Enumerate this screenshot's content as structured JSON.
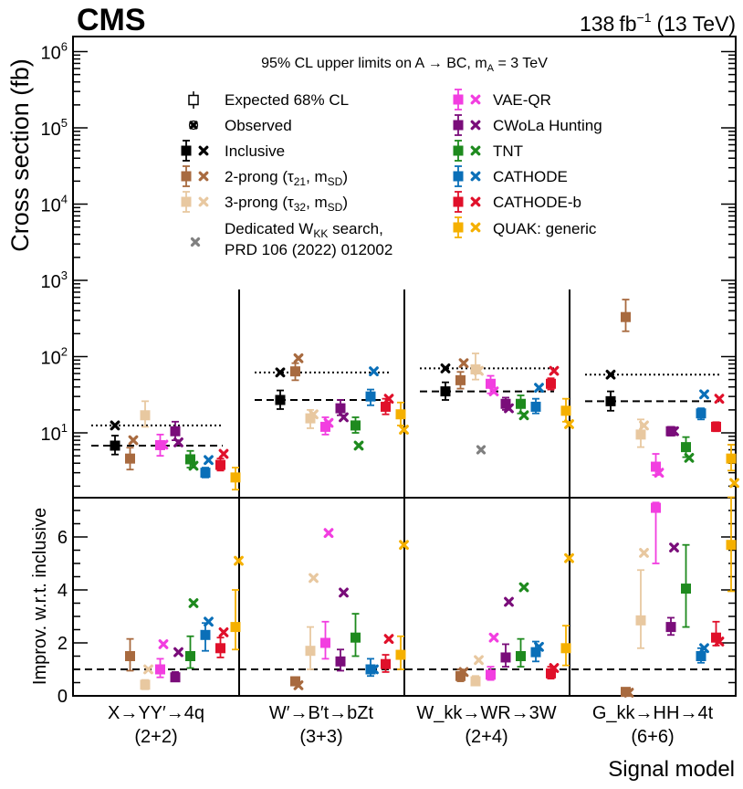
{
  "header": {
    "experiment": "CMS",
    "lumi_value": "138",
    "lumi_unit": "fb",
    "lumi_exp": "−1",
    "energy": "(13 TeV)"
  },
  "chart_data": {
    "type": "scatter",
    "title": "95% CL upper limits on A → BC, m_A = 3 TeV",
    "title_parts": {
      "main": "95% CL upper limits on A → BC, m",
      "sub": "A",
      "tail": " = 3 TeV"
    },
    "xlabel": "Signal model",
    "top_panel": {
      "ylabel": "Cross section (fb)",
      "yscale": "log",
      "ylim": [
        1.5,
        1500000
      ],
      "tick_labels": [
        {
          "base": "10",
          "exp": "1",
          "value": 10
        },
        {
          "base": "10",
          "exp": "2",
          "value": 100
        },
        {
          "base": "10",
          "exp": "3",
          "value": 1000
        },
        {
          "base": "10",
          "exp": "4",
          "value": 10000
        },
        {
          "base": "10",
          "exp": "5",
          "value": 100000
        },
        {
          "base": "10",
          "exp": "6",
          "value": 1000000
        }
      ]
    },
    "bottom_panel": {
      "ylabel": "Improv. w.r.t. inclusive",
      "ylim": [
        0,
        7.5
      ],
      "ticks": [
        "0",
        "2",
        "4",
        "6"
      ],
      "reference_line": 1
    },
    "legend": {
      "expected": "Expected 68% CL",
      "observed": "Observed",
      "dedicated_line1": "Dedicated W",
      "dedicated_sub": "KK",
      "dedicated_tail": " search,",
      "dedicated_line2": "PRD 106 (2022) 012002",
      "dedicated_color": "#808080"
    },
    "categories": [
      {
        "main": "X→YY′→4q",
        "sub": "(2+2)",
        "inclusive_observed": 12.5,
        "inclusive_expected": 6.8,
        "dedicated_observed": null
      },
      {
        "main": "W′→B′t→bZt",
        "sub": "(3+3)",
        "inclusive_observed": 62,
        "inclusive_expected": 27,
        "dedicated_observed": null
      },
      {
        "main": "W_kk→WR→3W",
        "sub": "(2+4)",
        "inclusive_observed": 70,
        "inclusive_expected": 35,
        "dedicated_observed": 6
      },
      {
        "main": "G_kk→HH→4t",
        "sub": "(6+6)",
        "inclusive_observed": 58,
        "inclusive_expected": 26,
        "dedicated_observed": null
      }
    ],
    "series": [
      {
        "name": "Inclusive",
        "label": "Inclusive",
        "color": "#000000",
        "expected": [
          6.8,
          27,
          35,
          26
        ],
        "lo": [
          5.2,
          20.5,
          27,
          19.5
        ],
        "hi": [
          9.2,
          36,
          46,
          35
        ],
        "observed": [
          12.5,
          62,
          70,
          58
        ],
        "improv_expected": [
          null,
          null,
          null,
          null
        ],
        "improv_lo": [
          null,
          null,
          null,
          null
        ],
        "improv_hi": [
          null,
          null,
          null,
          null
        ],
        "improv_observed": [
          null,
          null,
          null,
          null
        ]
      },
      {
        "name": "2-prong",
        "label": "2-prong (τ",
        "label_sub": "21",
        "label_tail": ", m",
        "label_sub2": "SD",
        "label_end": ")",
        "color": "#a86a3f",
        "expected": [
          4.6,
          64,
          49,
          330
        ],
        "lo": [
          3.3,
          49,
          38,
          215
        ],
        "hi": [
          6.4,
          82,
          63,
          560
        ],
        "observed": [
          8,
          95,
          82,
          null
        ],
        "improv_expected": [
          1.5,
          0.55,
          0.75,
          0.15
        ],
        "improv_lo": [
          0.95,
          0.4,
          0.55,
          0.08
        ],
        "improv_hi": [
          2.15,
          0.7,
          1.0,
          0.25
        ],
        "improv_observed": [
          null,
          0.4,
          0.9,
          0.12
        ]
      },
      {
        "name": "3-prong",
        "label": "3-prong (τ",
        "label_sub": "32",
        "label_tail": ", m",
        "label_sub2": "SD",
        "label_end": ")",
        "color": "#e8c8a0",
        "expected": [
          17,
          15.5,
          68,
          9.5
        ],
        "lo": [
          12,
          11.5,
          50,
          6.5
        ],
        "hi": [
          26,
          20,
          110,
          15
        ],
        "observed": [
          null,
          17.5,
          65,
          12.5
        ],
        "improv_expected": [
          0.42,
          1.7,
          0.55,
          2.85
        ],
        "improv_lo": [
          0.25,
          1.0,
          0.4,
          1.8
        ],
        "improv_hi": [
          0.6,
          2.6,
          0.75,
          4.75
        ],
        "improv_observed": [
          1.0,
          4.45,
          1.35,
          5.4
        ]
      },
      {
        "name": "VAE-QR",
        "label": "VAE-QR",
        "color": "#f23ee0",
        "expected": [
          6.9,
          12,
          44,
          3.6
        ],
        "lo": [
          5.0,
          9.5,
          33,
          2.8
        ],
        "hi": [
          9.5,
          16,
          56,
          5.3
        ],
        "observed": [
          7,
          13.5,
          35,
          3.0
        ],
        "improv_expected": [
          1.0,
          2.0,
          0.8,
          7.1
        ],
        "improv_lo": [
          0.7,
          1.4,
          0.6,
          5.0
        ],
        "improv_hi": [
          1.4,
          2.8,
          1.1,
          7.3
        ],
        "improv_observed": [
          1.95,
          6.15,
          2.2,
          null
        ]
      },
      {
        "name": "CWoLa",
        "label": "CWoLa Hunting",
        "color": "#7a0d7a",
        "expected": [
          10.5,
          21,
          24,
          10.5
        ],
        "lo": [
          8,
          17,
          20,
          9.2
        ],
        "hi": [
          14,
          27,
          29,
          12
        ],
        "observed": [
          7.5,
          16,
          21,
          10.5
        ],
        "improv_expected": [
          0.7,
          1.3,
          1.45,
          2.6
        ],
        "improv_lo": [
          0.55,
          0.95,
          1.1,
          2.3
        ],
        "improv_hi": [
          0.9,
          1.75,
          1.95,
          2.95
        ],
        "improv_observed": [
          1.65,
          3.9,
          3.55,
          5.6
        ]
      },
      {
        "name": "TNT",
        "label": "TNT",
        "color": "#1e8a1e",
        "expected": [
          4.5,
          12.5,
          24,
          6.5
        ],
        "lo": [
          3.5,
          10,
          18,
          4.8
        ],
        "hi": [
          5.8,
          16,
          31,
          8.8
        ],
        "observed": [
          3.7,
          6.8,
          17,
          4.7
        ],
        "improv_expected": [
          1.5,
          2.2,
          1.5,
          4.05
        ],
        "improv_lo": [
          1.05,
          1.5,
          1.1,
          2.6
        ],
        "improv_hi": [
          2.25,
          3.1,
          2.15,
          5.7
        ],
        "improv_observed": [
          3.5,
          null,
          4.1,
          null
        ]
      },
      {
        "name": "CATHODE",
        "label": "CATHODE",
        "color": "#0a6fb8",
        "expected": [
          3.0,
          30,
          22,
          18
        ],
        "lo": [
          2.6,
          23,
          18,
          15
        ],
        "hi": [
          3.5,
          37,
          28,
          21
        ],
        "observed": [
          4.4,
          64,
          39,
          32
        ],
        "improv_expected": [
          2.3,
          1.0,
          1.65,
          1.5
        ],
        "improv_lo": [
          1.7,
          0.75,
          1.3,
          1.25
        ],
        "improv_hi": [
          2.75,
          1.4,
          2.05,
          1.8
        ],
        "improv_observed": [
          2.8,
          1.0,
          1.85,
          1.8
        ]
      },
      {
        "name": "CATHODE-b",
        "label": "CATHODE-b",
        "color": "#e0102a",
        "expected": [
          3.8,
          22,
          44,
          12
        ],
        "lo": [
          3.2,
          17.5,
          37,
          10.5
        ],
        "hi": [
          4.6,
          28,
          52,
          13.8
        ],
        "observed": [
          5.3,
          28,
          65,
          28
        ],
        "improv_expected": [
          1.8,
          1.2,
          0.85,
          2.2
        ],
        "improv_lo": [
          1.45,
          0.9,
          0.65,
          1.9
        ],
        "improv_hi": [
          2.2,
          1.55,
          1.1,
          2.8
        ],
        "improv_observed": [
          2.4,
          2.15,
          1.05,
          2.05
        ]
      },
      {
        "name": "QUAK",
        "label": "QUAK: generic",
        "color": "#f5b000",
        "expected": [
          2.6,
          17.5,
          19.5,
          4.6
        ],
        "lo": [
          1.8,
          12.5,
          14,
          3.2
        ],
        "hi": [
          3.5,
          25,
          28,
          7.0
        ],
        "observed": [
          null,
          11,
          13,
          2.2
        ],
        "improv_expected": [
          2.6,
          1.55,
          1.8,
          5.7
        ],
        "improv_lo": [
          1.75,
          1.0,
          1.15,
          3.95
        ],
        "improv_hi": [
          4.0,
          2.25,
          2.65,
          7.5
        ],
        "improv_observed": [
          5.1,
          5.7,
          5.2,
          null
        ]
      }
    ]
  }
}
